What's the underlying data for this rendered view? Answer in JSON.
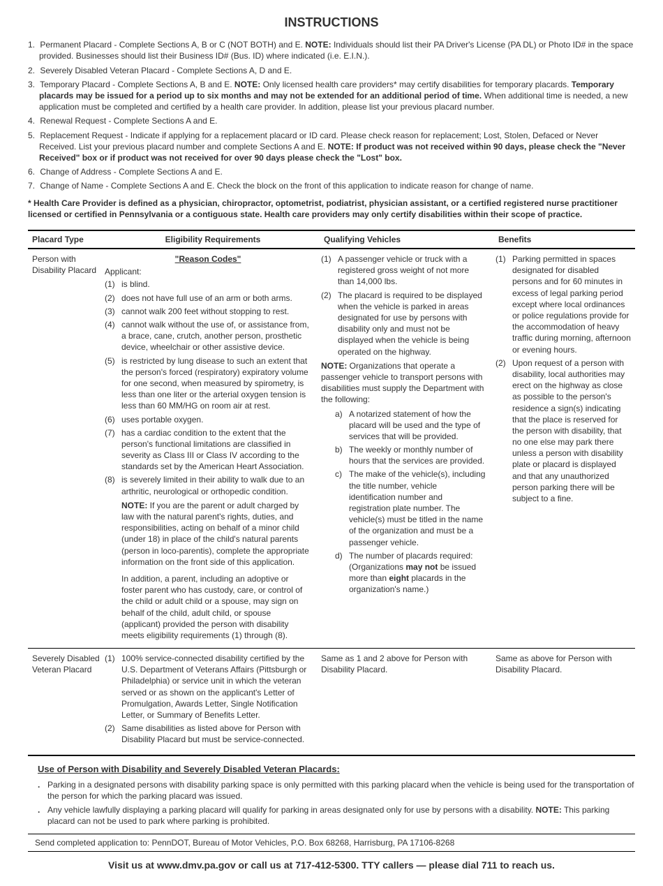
{
  "title": "INSTRUCTIONS",
  "instructions": [
    {
      "n": "1.",
      "html": "Permanent Placard - Complete Sections A, B or C (NOT BOTH) and E.  <b>NOTE:</b> Individuals should list their PA Driver's License (PA DL) or Photo ID# in the space provided.  Businesses should list their Business ID# (Bus. ID) where indicated (i.e. E.I.N.)."
    },
    {
      "n": "2.",
      "html": "Severely Disabled Veteran Placard - Complete Sections A, D and E."
    },
    {
      "n": "3.",
      "html": "Temporary Placard - Complete Sections A, B and E. <b>NOTE:</b> Only licensed health care providers* may certify disabilities for temporary placards. <b>Temporary placards may be issued for a period up to six months and may not be extended for an additional period of time.</b>  When additional time is needed, a new application must be completed and certified by a health care provider.  In addition, please list your previous placard number."
    },
    {
      "n": "4.",
      "html": "Renewal Request - Complete Sections A and E."
    },
    {
      "n": "5.",
      "html": "Replacement Request - Indicate if applying for a replacement placard or ID card.  Please check reason for replacement; Lost, Stolen, Defaced or Never Received.  List your previous placard number and complete Sections A and E. <b>NOTE: If product was not received within 90 days, please check the \"Never Received\" box or if product was not received for over 90 days please check the \"Lost\" box.</b>"
    },
    {
      "n": "6.",
      "html": "Change of Address - Complete Sections A and E."
    },
    {
      "n": "7.",
      "html": "Change of Name - Complete Sections A and E.  Check the block on the front of this application to indicate reason for change of name."
    }
  ],
  "footnote": "* Health Care Provider is defined as a physician, chiropractor, optometrist, podiatrist, physician assistant, or a certified registered nurse practitioner licensed or certified in Pennsylvania or a contiguous state. Health care providers may only certify disabilities within their scope of practice.",
  "headers": {
    "type": "Placard Type",
    "elig": "Eligibility Requirements",
    "qual": "Qualifying Vehicles",
    "ben": "Benefits"
  },
  "row1": {
    "type": "Person with Disability Placard",
    "reason_hdr": "\"Reason Codes\"",
    "applicant": "Applicant:",
    "reasons": [
      {
        "n": "(1)",
        "t": "is blind."
      },
      {
        "n": "(2)",
        "t": "does not have full use of an arm or both arms."
      },
      {
        "n": "(3)",
        "t": "cannot walk 200 feet without stopping to rest."
      },
      {
        "n": "(4)",
        "t": "cannot walk without the use of, or assistance from, a brace, cane, crutch, another person, prosthetic device, wheelchair or other assistive device."
      },
      {
        "n": "(5)",
        "t": "is restricted by lung disease to such an extent that the person's forced (respiratory) expiratory volume for one second, when measured by spirometry, is less than one liter or the arterial oxygen tension is less than 60 MM/HG on room air at rest."
      },
      {
        "n": "(6)",
        "t": "uses portable oxygen."
      },
      {
        "n": "(7)",
        "t": "has a cardiac condition to the extent that the person's functional limitations are classified in severity as Class III or Class IV according to the standards set by the American Heart Association."
      },
      {
        "n": "(8)",
        "t": "is severely limited in their ability to walk due to  an arthritic, neurological or orthopedic condition."
      }
    ],
    "note1": "<b>NOTE:</b> If you are the parent or adult charged by law with the natural parent's rights, duties, and responsibilities, acting on behalf of a minor child (under 18) in place of the child's natural parents (person in loco-parentis), complete the appropriate information on the front side of this application.",
    "note2": "In addition, a parent, including an adoptive or foster parent who has custody, care, or control of the child or adult child or a spouse, may sign on behalf of the child, adult child, or spouse (applicant) provided the person with disability meets eligibility requirements (1) through (8).",
    "qual_items": [
      {
        "n": "(1)",
        "t": "A passenger vehicle or truck with a registered gross weight of not more than 14,000 lbs."
      },
      {
        "n": "(2)",
        "t": "The placard is required to be displayed when the vehicle is parked in areas designated for use by persons with disability only and must not be displayed when the vehicle is being operated on the highway."
      }
    ],
    "qual_note": "<b>NOTE:</b> Organizations that operate a passenger vehicle to transport persons with disabilities must supply the Department with the following:",
    "qual_sub": [
      {
        "n": "a)",
        "t": "A notarized statement of how the placard will be used and the type of services that will be provided."
      },
      {
        "n": "b)",
        "t": "The weekly or monthly number of hours that the services are provided."
      },
      {
        "n": "c)",
        "t": "The make of the vehicle(s), including the title number, vehicle identification number and registration plate number. The vehicle(s) must be titled in the name of the organization and must be a passenger vehicle."
      },
      {
        "n": "d)",
        "html": "The number of placards required: (Organizations <b>may not</b> be issued more than <b>eight</b> placards in the organization's name.)"
      }
    ],
    "benefits": [
      {
        "n": "(1)",
        "t": "Parking permitted in spaces designated for disabled persons and for 60 minutes in excess of legal parking period except where local ordinances or police regulations provide for the accommodation of heavy traffic during morning, afternoon or evening hours."
      },
      {
        "n": "(2)",
        "t": "Upon request of a person with disability, local authorities may erect on the highway as close as possible to the person's residence a sign(s) indicating that the place is reserved for the person with disability, that no one else may park there unless a person with disability plate or placard is displayed and that any unauthorized person parking there will be subject to a fine."
      }
    ]
  },
  "row2": {
    "type": "Severely Disabled Veteran Placard",
    "reasons": [
      {
        "n": "(1)",
        "t": "100% service-connected disability certified by the U.S. Department of Veterans Affairs (Pittsburgh or Philadelphia) or service unit  in which the veteran served or as shown on the applicant's Letter of Promulgation, Awards Letter, Single Notification Letter, or Summary of Benefits Letter."
      },
      {
        "n": "(2)",
        "t": "Same disabilities as listed above for Person with Disability Placard but must be service-connected."
      }
    ],
    "qual": "Same as 1 and 2 above for Person with Disability Placard.",
    "ben": "Same as above for Person with Disability Placard."
  },
  "use_hdr": "Use of Person with Disability and Severely Disabled Veteran Placards:",
  "use_items": [
    "Parking in a designated persons with disability parking space is only permitted with this parking placard when the vehicle is being used for the transportation of the person for which the parking placard was issued.",
    "Any vehicle lawfully displaying a parking placard will qualify for parking in areas designated only for use by persons with a disability. <b>NOTE:</b> This parking placard can not be used to park where parking is prohibited."
  ],
  "send": "Send completed application to: PennDOT, Bureau of Motor Vehicles, P.O. Box 68268, Harrisburg, PA  17106-8268",
  "visit": "Visit us at www.dmv.pa.gov or call us at 717-412-5300.  TTY callers — please dial 711 to reach us."
}
